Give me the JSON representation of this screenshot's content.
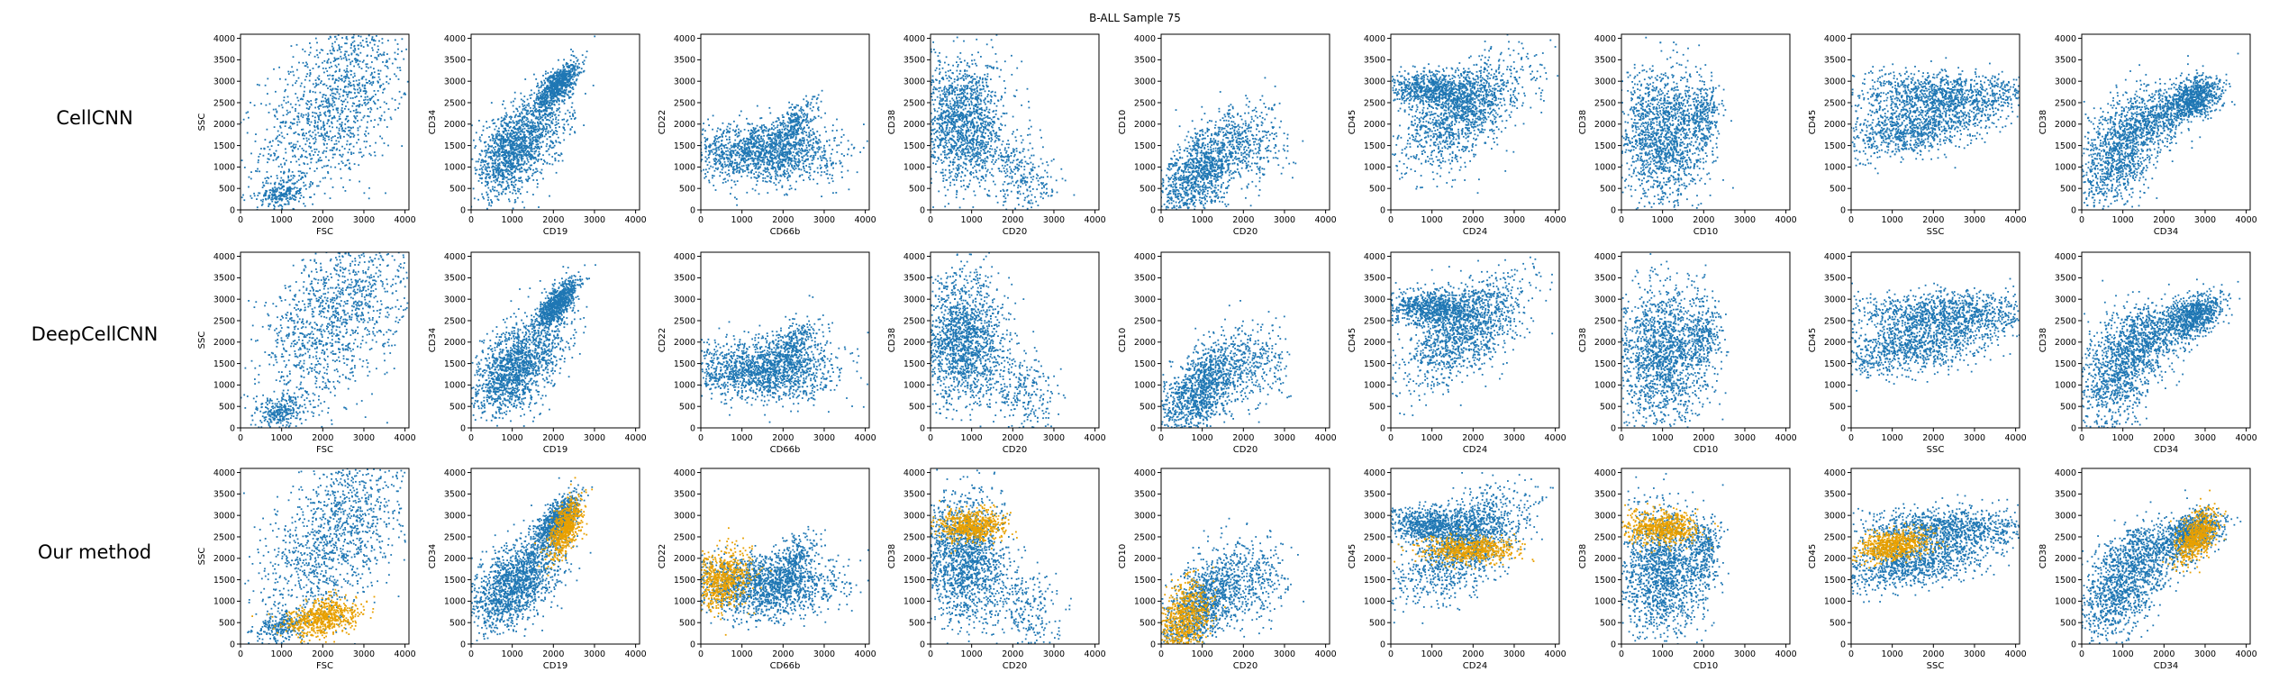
{
  "figure": {
    "title": "B-ALL Sample 75",
    "row_labels": [
      "CellCNN",
      "DeepCellCNN",
      "Our method"
    ],
    "colors": {
      "background_cells": "#1f77b4",
      "highlighted_cells": "#e8a000",
      "axes": "#000000"
    }
  },
  "chart_data": {
    "type": "scatter",
    "grid": false,
    "description": "3 x 9 grid of scatter plots of cytometry marker pairs; rows are methods, columns are marker pairs. Blue points: all cells; orange points: cells selected (shown only in the 'Our method' row).",
    "columns": [
      {
        "xlabel": "FSC",
        "ylabel": "SSC",
        "xlim": [
          0,
          4096
        ],
        "ylim": [
          0,
          4096
        ]
      },
      {
        "xlabel": "CD19",
        "ylabel": "CD34",
        "xlim": [
          0,
          4096
        ],
        "ylim": [
          0,
          4096
        ]
      },
      {
        "xlabel": "CD66b",
        "ylabel": "CD22",
        "xlim": [
          0,
          4096
        ],
        "ylim": [
          0,
          4096
        ]
      },
      {
        "xlabel": "CD20",
        "ylabel": "CD38",
        "xlim": [
          0,
          4096
        ],
        "ylim": [
          0,
          4096
        ]
      },
      {
        "xlabel": "CD20",
        "ylabel": "CD10",
        "xlim": [
          0,
          4096
        ],
        "ylim": [
          0,
          4096
        ]
      },
      {
        "xlabel": "CD24",
        "ylabel": "CD45",
        "xlim": [
          0,
          4096
        ],
        "ylim": [
          0,
          4096
        ]
      },
      {
        "xlabel": "CD10",
        "ylabel": "CD38",
        "xlim": [
          0,
          4096
        ],
        "ylim": [
          0,
          4096
        ]
      },
      {
        "xlabel": "SSC",
        "ylabel": "CD45",
        "xlim": [
          0,
          4096
        ],
        "ylim": [
          0,
          4096
        ]
      },
      {
        "xlabel": "CD34",
        "ylabel": "CD38",
        "xlim": [
          0,
          4096
        ],
        "ylim": [
          0,
          4096
        ]
      }
    ],
    "xticks": [
      0,
      1000,
      2000,
      3000,
      4000
    ],
    "yticks": [
      0,
      500,
      1000,
      1500,
      2000,
      2500,
      3000,
      3500,
      4000
    ],
    "series": [
      {
        "role": "all cells",
        "color": "#1f77b4",
        "clusters": [
          [
            {
              "cx": 2300,
              "cy": 2500,
              "sx": 900,
              "sy": 1100,
              "r": 0.5,
              "w": 5
            },
            {
              "cx": 1000,
              "cy": 400,
              "sx": 300,
              "sy": 200,
              "r": 0.3,
              "w": 1
            }
          ],
          [
            {
              "cx": 2100,
              "cy": 2900,
              "sx": 250,
              "sy": 280,
              "r": 0.7,
              "w": 3
            },
            {
              "cx": 900,
              "cy": 1300,
              "sx": 450,
              "sy": 500,
              "r": 0.4,
              "w": 4
            },
            {
              "cx": 1600,
              "cy": 1800,
              "sx": 450,
              "sy": 600,
              "r": 0.5,
              "w": 2
            }
          ],
          [
            {
              "cx": 1500,
              "cy": 1350,
              "sx": 900,
              "sy": 350,
              "r": 0.0,
              "w": 6
            },
            {
              "cx": 2300,
              "cy": 2000,
              "sx": 300,
              "sy": 300,
              "r": 0.5,
              "w": 1
            }
          ],
          [
            {
              "cx": 800,
              "cy": 2000,
              "sx": 500,
              "sy": 750,
              "r": 0.0,
              "w": 6
            },
            {
              "cx": 2300,
              "cy": 800,
              "sx": 450,
              "sy": 450,
              "r": -0.3,
              "w": 1
            }
          ],
          [
            {
              "cx": 1000,
              "cy": 900,
              "sx": 550,
              "sy": 600,
              "r": 0.6,
              "w": 5
            },
            {
              "cx": 2300,
              "cy": 1500,
              "sx": 400,
              "sy": 500,
              "r": 0.0,
              "w": 1
            }
          ],
          [
            {
              "cx": 1800,
              "cy": 2300,
              "sx": 750,
              "sy": 650,
              "r": 0.6,
              "w": 5
            },
            {
              "cx": 1000,
              "cy": 2800,
              "sx": 600,
              "sy": 200,
              "r": 0.0,
              "w": 3
            }
          ],
          [
            {
              "cx": 1000,
              "cy": 1700,
              "sx": 550,
              "sy": 800,
              "r": 0.0,
              "w": 6
            },
            {
              "cx": 2000,
              "cy": 2200,
              "sx": 200,
              "sy": 400,
              "r": 0.0,
              "w": 1
            }
          ],
          [
            {
              "cx": 2300,
              "cy": 2700,
              "sx": 1100,
              "sy": 250,
              "r": 0.0,
              "w": 4
            },
            {
              "cx": 1500,
              "cy": 1900,
              "sx": 1000,
              "sy": 350,
              "r": 0.5,
              "w": 4
            }
          ],
          [
            {
              "cx": 900,
              "cy": 1300,
              "sx": 500,
              "sy": 650,
              "r": 0.4,
              "w": 4
            },
            {
              "cx": 2700,
              "cy": 2600,
              "sx": 350,
              "sy": 250,
              "r": 0.4,
              "w": 3
            },
            {
              "cx": 1700,
              "cy": 2100,
              "sx": 500,
              "sy": 400,
              "r": 0.3,
              "w": 2
            }
          ]
        ]
      },
      {
        "role": "selected cells",
        "color": "#e8a000",
        "rows": [
          2
        ],
        "clusters": [
          [
            {
              "cx": 2000,
              "cy": 600,
              "sx": 450,
              "sy": 220,
              "r": 0.3,
              "w": 1
            }
          ],
          [
            {
              "cx": 2300,
              "cy": 2700,
              "sx": 200,
              "sy": 350,
              "r": 0.6,
              "w": 1
            }
          ],
          [
            {
              "cx": 500,
              "cy": 1500,
              "sx": 350,
              "sy": 350,
              "r": 0.2,
              "w": 1
            }
          ],
          [
            {
              "cx": 1000,
              "cy": 2750,
              "sx": 400,
              "sy": 180,
              "r": 0.0,
              "w": 1
            }
          ],
          [
            {
              "cx": 600,
              "cy": 600,
              "sx": 300,
              "sy": 450,
              "r": 0.3,
              "w": 1
            }
          ],
          [
            {
              "cx": 1900,
              "cy": 2200,
              "sx": 550,
              "sy": 150,
              "r": 0.0,
              "w": 1
            }
          ],
          [
            {
              "cx": 1000,
              "cy": 2700,
              "sx": 450,
              "sy": 200,
              "r": 0.0,
              "w": 1
            }
          ],
          [
            {
              "cx": 1000,
              "cy": 2300,
              "sx": 450,
              "sy": 180,
              "r": 0.3,
              "w": 1
            }
          ],
          [
            {
              "cx": 2800,
              "cy": 2500,
              "sx": 250,
              "sy": 300,
              "r": 0.5,
              "w": 1
            }
          ]
        ]
      }
    ]
  }
}
